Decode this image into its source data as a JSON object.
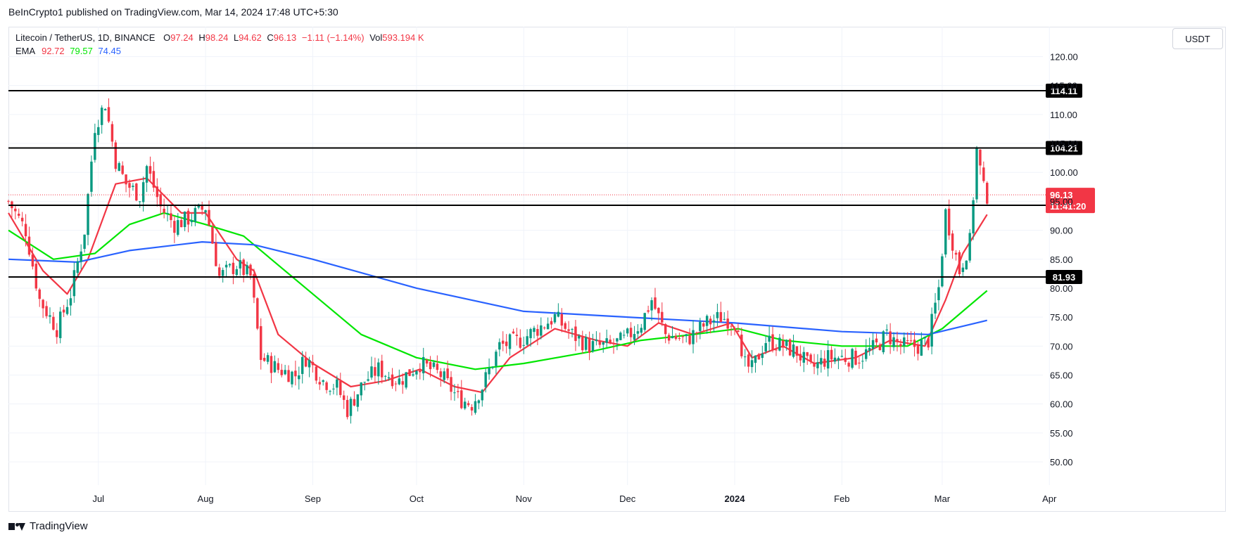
{
  "header": {
    "caption": "BeInCrypto1 published on TradingView.com, Mar 14, 2024 17:48 UTC+5:30"
  },
  "legend": {
    "symbol": "Litecoin / TetherUS, 1D, BINANCE",
    "o_label": "O",
    "o_value": "97.24",
    "h_label": "H",
    "h_value": "98.24",
    "l_label": "L",
    "l_value": "94.62",
    "c_label": "C",
    "c_value": "96.13",
    "change": "−1.11 (−1.14%)",
    "vol_label": "Vol",
    "vol_value": "593.194 K",
    "ema_label": "EMA",
    "ema_values": [
      "92.72",
      "79.57",
      "74.45"
    ]
  },
  "currency_button": "USDT",
  "footer": {
    "brand": "TradingView"
  },
  "colors": {
    "up": "#089981",
    "down": "#f23645",
    "ema_fast": "#f23645",
    "ema_mid": "#00e600",
    "ema_slow": "#2962ff",
    "level_line": "#000000",
    "price_badge": "#f23645"
  },
  "chart_data": {
    "type": "candlestick",
    "y_axis_ticks": [
      "50.00",
      "55.00",
      "60.00",
      "65.00",
      "70.00",
      "75.00",
      "80.00",
      "85.00",
      "90.00",
      "95.00",
      "100.00",
      "105.00",
      "110.00",
      "115.00",
      "120.00"
    ],
    "x_axis_ticks": [
      {
        "label": "Jul",
        "date": "2023-07-01"
      },
      {
        "label": "Aug",
        "date": "2023-08-01"
      },
      {
        "label": "Sep",
        "date": "2023-09-01"
      },
      {
        "label": "Oct",
        "date": "2023-10-01"
      },
      {
        "label": "Nov",
        "date": "2023-11-01"
      },
      {
        "label": "Dec",
        "date": "2023-12-01"
      },
      {
        "label": "2024",
        "date": "2024-01-01",
        "bold": true
      },
      {
        "label": "Feb",
        "date": "2024-02-01"
      },
      {
        "label": "Mar",
        "date": "2024-03-01"
      },
      {
        "label": "Apr",
        "date": "2024-04-01"
      }
    ],
    "ylim": [
      46,
      122
    ],
    "xlim": [
      "2023-06-05",
      "2024-04-15"
    ],
    "grid": true,
    "horizontal_levels": [
      "114.11",
      "104.21",
      "94.32",
      "81.93"
    ],
    "last_price": "96.13",
    "countdown": "11:41:20",
    "close_series": [
      {
        "date": "2023-06-05",
        "close": 95
      },
      {
        "date": "2023-06-10",
        "close": 90
      },
      {
        "date": "2023-06-14",
        "close": 78
      },
      {
        "date": "2023-06-19",
        "close": 73
      },
      {
        "date": "2023-06-23",
        "close": 79
      },
      {
        "date": "2023-06-27",
        "close": 90
      },
      {
        "date": "2023-06-30",
        "close": 108
      },
      {
        "date": "2023-07-03",
        "close": 112
      },
      {
        "date": "2023-07-06",
        "close": 102
      },
      {
        "date": "2023-07-09",
        "close": 98
      },
      {
        "date": "2023-07-13",
        "close": 96
      },
      {
        "date": "2023-07-15",
        "close": 101
      },
      {
        "date": "2023-07-19",
        "close": 94
      },
      {
        "date": "2023-07-23",
        "close": 91
      },
      {
        "date": "2023-07-27",
        "close": 92
      },
      {
        "date": "2023-08-01",
        "close": 94
      },
      {
        "date": "2023-08-05",
        "close": 82
      },
      {
        "date": "2023-08-10",
        "close": 84
      },
      {
        "date": "2023-08-14",
        "close": 82
      },
      {
        "date": "2023-08-17",
        "close": 68
      },
      {
        "date": "2023-08-22",
        "close": 66
      },
      {
        "date": "2023-08-27",
        "close": 65
      },
      {
        "date": "2023-08-30",
        "close": 68
      },
      {
        "date": "2023-09-04",
        "close": 64
      },
      {
        "date": "2023-09-08",
        "close": 63
      },
      {
        "date": "2023-09-11",
        "close": 59
      },
      {
        "date": "2023-09-16",
        "close": 64
      },
      {
        "date": "2023-09-20",
        "close": 66
      },
      {
        "date": "2023-09-26",
        "close": 64
      },
      {
        "date": "2023-10-02",
        "close": 67
      },
      {
        "date": "2023-10-08",
        "close": 65
      },
      {
        "date": "2023-10-13",
        "close": 61
      },
      {
        "date": "2023-10-17",
        "close": 60
      },
      {
        "date": "2023-10-20",
        "close": 63
      },
      {
        "date": "2023-10-25",
        "close": 70
      },
      {
        "date": "2023-10-31",
        "close": 71
      },
      {
        "date": "2023-11-05",
        "close": 73
      },
      {
        "date": "2023-11-10",
        "close": 75
      },
      {
        "date": "2023-11-15",
        "close": 72
      },
      {
        "date": "2023-11-20",
        "close": 70
      },
      {
        "date": "2023-11-25",
        "close": 70
      },
      {
        "date": "2023-11-30",
        "close": 71
      },
      {
        "date": "2023-12-05",
        "close": 74
      },
      {
        "date": "2023-12-08",
        "close": 78
      },
      {
        "date": "2023-12-12",
        "close": 72
      },
      {
        "date": "2023-12-18",
        "close": 71
      },
      {
        "date": "2023-12-24",
        "close": 74
      },
      {
        "date": "2023-12-28",
        "close": 75
      },
      {
        "date": "2024-01-02",
        "close": 74
      },
      {
        "date": "2024-01-03",
        "close": 67
      },
      {
        "date": "2024-01-06",
        "close": 66
      },
      {
        "date": "2024-01-10",
        "close": 71
      },
      {
        "date": "2024-01-15",
        "close": 70
      },
      {
        "date": "2024-01-19",
        "close": 69
      },
      {
        "date": "2024-01-23",
        "close": 66
      },
      {
        "date": "2024-01-28",
        "close": 68
      },
      {
        "date": "2024-02-01",
        "close": 68
      },
      {
        "date": "2024-02-06",
        "close": 68
      },
      {
        "date": "2024-02-11",
        "close": 70
      },
      {
        "date": "2024-02-14",
        "close": 72
      },
      {
        "date": "2024-02-18",
        "close": 70
      },
      {
        "date": "2024-02-23",
        "close": 70
      },
      {
        "date": "2024-02-26",
        "close": 71
      },
      {
        "date": "2024-02-29",
        "close": 80
      },
      {
        "date": "2024-03-02",
        "close": 93
      },
      {
        "date": "2024-03-04",
        "close": 88
      },
      {
        "date": "2024-03-06",
        "close": 83
      },
      {
        "date": "2024-03-09",
        "close": 88
      },
      {
        "date": "2024-03-11",
        "close": 104
      },
      {
        "date": "2024-03-13",
        "close": 97
      },
      {
        "date": "2024-03-14",
        "close": 96
      }
    ],
    "series": [
      {
        "name": "EMA 92.72",
        "points": [
          {
            "date": "2023-06-05",
            "value": 93
          },
          {
            "date": "2023-06-15",
            "value": 83
          },
          {
            "date": "2023-06-22",
            "value": 79
          },
          {
            "date": "2023-06-28",
            "value": 85
          },
          {
            "date": "2023-07-06",
            "value": 98
          },
          {
            "date": "2023-07-15",
            "value": 99
          },
          {
            "date": "2023-07-25",
            "value": 93
          },
          {
            "date": "2023-08-01",
            "value": 93
          },
          {
            "date": "2023-08-10",
            "value": 85
          },
          {
            "date": "2023-08-15",
            "value": 83
          },
          {
            "date": "2023-08-22",
            "value": 72
          },
          {
            "date": "2023-09-01",
            "value": 67
          },
          {
            "date": "2023-09-12",
            "value": 63
          },
          {
            "date": "2023-09-22",
            "value": 64
          },
          {
            "date": "2023-10-02",
            "value": 66
          },
          {
            "date": "2023-10-12",
            "value": 63
          },
          {
            "date": "2023-10-20",
            "value": 62
          },
          {
            "date": "2023-10-28",
            "value": 68
          },
          {
            "date": "2023-11-10",
            "value": 73
          },
          {
            "date": "2023-11-22",
            "value": 71
          },
          {
            "date": "2023-12-01",
            "value": 70
          },
          {
            "date": "2023-12-10",
            "value": 74
          },
          {
            "date": "2023-12-20",
            "value": 72
          },
          {
            "date": "2023-12-31",
            "value": 74
          },
          {
            "date": "2024-01-06",
            "value": 68
          },
          {
            "date": "2024-01-15",
            "value": 70
          },
          {
            "date": "2024-01-24",
            "value": 67
          },
          {
            "date": "2024-02-05",
            "value": 68
          },
          {
            "date": "2024-02-15",
            "value": 71
          },
          {
            "date": "2024-02-25",
            "value": 70
          },
          {
            "date": "2024-03-02",
            "value": 78
          },
          {
            "date": "2024-03-07",
            "value": 86
          },
          {
            "date": "2024-03-14",
            "value": 92.72
          }
        ]
      },
      {
        "name": "EMA 79.57",
        "points": [
          {
            "date": "2023-06-05",
            "value": 90
          },
          {
            "date": "2023-06-18",
            "value": 85
          },
          {
            "date": "2023-06-30",
            "value": 86
          },
          {
            "date": "2023-07-10",
            "value": 91
          },
          {
            "date": "2023-07-20",
            "value": 93
          },
          {
            "date": "2023-08-01",
            "value": 91
          },
          {
            "date": "2023-08-12",
            "value": 89
          },
          {
            "date": "2023-08-20",
            "value": 85
          },
          {
            "date": "2023-09-01",
            "value": 79
          },
          {
            "date": "2023-09-15",
            "value": 72
          },
          {
            "date": "2023-10-01",
            "value": 68
          },
          {
            "date": "2023-10-18",
            "value": 66
          },
          {
            "date": "2023-11-01",
            "value": 67
          },
          {
            "date": "2023-11-20",
            "value": 69
          },
          {
            "date": "2023-12-05",
            "value": 71
          },
          {
            "date": "2023-12-20",
            "value": 72
          },
          {
            "date": "2024-01-02",
            "value": 73
          },
          {
            "date": "2024-01-15",
            "value": 71
          },
          {
            "date": "2024-02-01",
            "value": 70
          },
          {
            "date": "2024-02-20",
            "value": 70
          },
          {
            "date": "2024-03-01",
            "value": 73
          },
          {
            "date": "2024-03-14",
            "value": 79.57
          }
        ]
      },
      {
        "name": "EMA 74.45",
        "points": [
          {
            "date": "2023-06-05",
            "value": 85
          },
          {
            "date": "2023-06-25",
            "value": 84.5
          },
          {
            "date": "2023-07-10",
            "value": 86.5
          },
          {
            "date": "2023-07-31",
            "value": 88
          },
          {
            "date": "2023-08-15",
            "value": 87.5
          },
          {
            "date": "2023-09-01",
            "value": 85
          },
          {
            "date": "2023-10-01",
            "value": 80
          },
          {
            "date": "2023-11-01",
            "value": 76
          },
          {
            "date": "2023-12-01",
            "value": 75
          },
          {
            "date": "2024-01-01",
            "value": 74
          },
          {
            "date": "2024-02-01",
            "value": 72.5
          },
          {
            "date": "2024-02-26",
            "value": 72
          },
          {
            "date": "2024-03-14",
            "value": 74.45
          }
        ]
      }
    ]
  }
}
